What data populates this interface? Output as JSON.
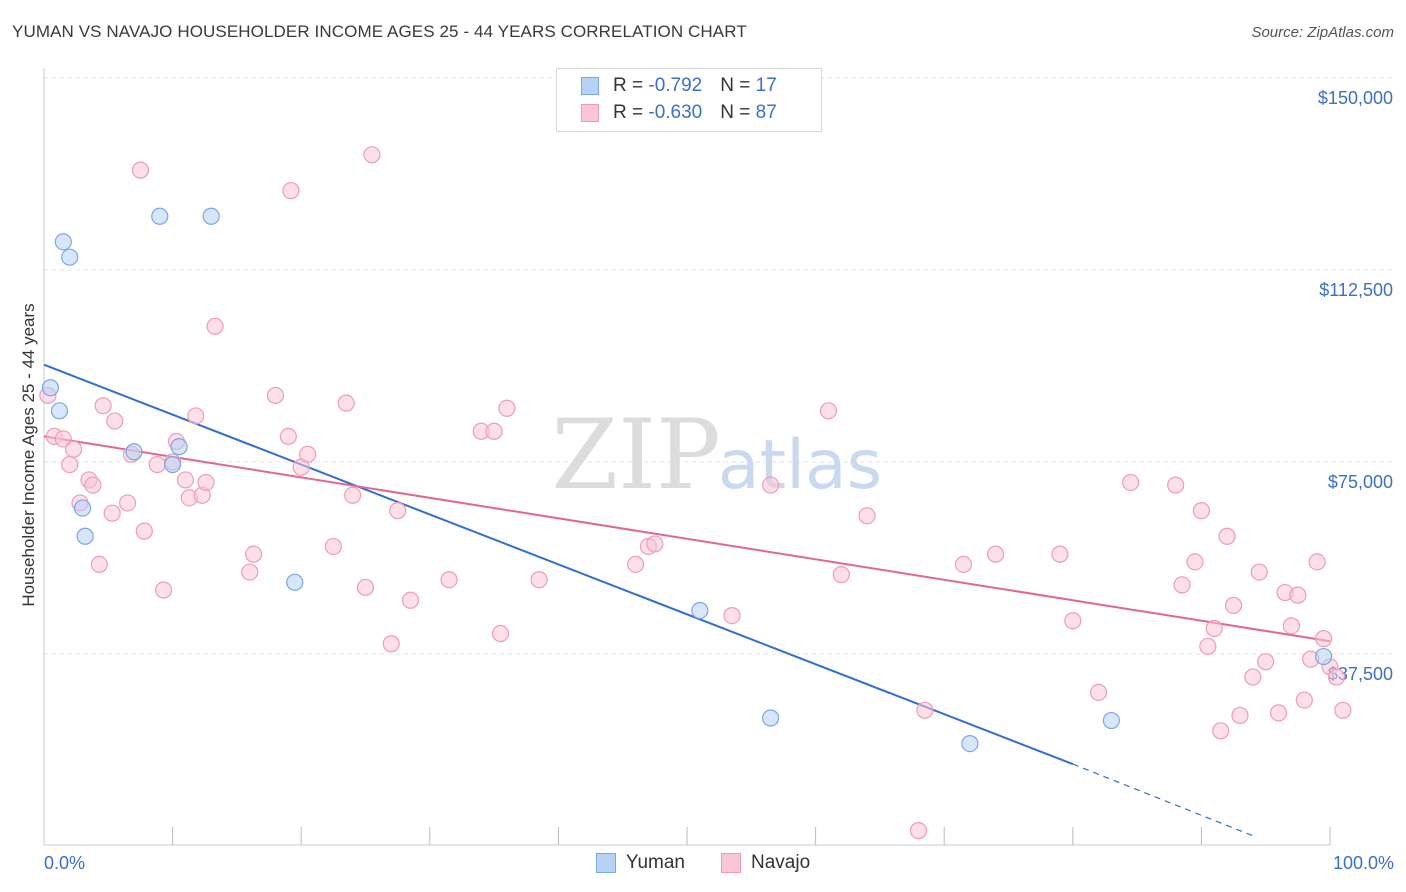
{
  "chart_data": {
    "type": "scatter",
    "title": "YUMAN VS NAVAJO HOUSEHOLDER INCOME AGES 25 - 44 YEARS CORRELATION CHART",
    "source": "Source: ZipAtlas.com",
    "xlabel": "",
    "ylabel": "Householder Income Ages 25 - 44 years",
    "xlim": [
      0,
      100
    ],
    "ylim": [
      0,
      157000
    ],
    "x_tick_labels": {
      "min": "0.0%",
      "max": "100.0%"
    },
    "y_ticks": [
      {
        "value": 37500,
        "label": "$37,500"
      },
      {
        "value": 75000,
        "label": "$75,000"
      },
      {
        "value": 112500,
        "label": "$112,500"
      },
      {
        "value": 150000,
        "label": "$150,000"
      }
    ],
    "grid": true,
    "watermark": {
      "zip": "ZIP",
      "atlas": "atlas"
    },
    "series": [
      {
        "name": "Yuman",
        "color": "#7aa7e8",
        "fill": "#b8d2f5",
        "line_color": "#2f6fcf",
        "R": "-0.792",
        "N": "17",
        "trend": {
          "x0": 0,
          "y0": 94000,
          "x1": 80,
          "y1": 16000,
          "dash_to_x": 94,
          "dash_to_y": 2000
        },
        "points": [
          [
            0.5,
            89500
          ],
          [
            1.5,
            118000
          ],
          [
            2.0,
            115000
          ],
          [
            1.2,
            85000
          ],
          [
            3.0,
            66000
          ],
          [
            3.2,
            60500
          ],
          [
            9.0,
            123000
          ],
          [
            13.0,
            123000
          ],
          [
            7.0,
            77000
          ],
          [
            10.0,
            74500
          ],
          [
            10.5,
            78000
          ],
          [
            19.5,
            51500
          ],
          [
            51.0,
            46000
          ],
          [
            56.5,
            25000
          ],
          [
            72.0,
            20000
          ],
          [
            83.0,
            24500
          ],
          [
            99.5,
            37000
          ]
        ]
      },
      {
        "name": "Navajo",
        "color": "#f19bb7",
        "fill": "#f8c6d6",
        "line_color": "#e2678f",
        "R": "-0.630",
        "N": "87",
        "trend": {
          "x0": 0,
          "y0": 80000,
          "x1": 100,
          "y1": 40000
        },
        "points": [
          [
            0.3,
            88000
          ],
          [
            0.8,
            80000
          ],
          [
            1.5,
            79500
          ],
          [
            2.0,
            74500
          ],
          [
            2.3,
            77500
          ],
          [
            2.8,
            67000
          ],
          [
            3.5,
            71500
          ],
          [
            3.8,
            70500
          ],
          [
            4.3,
            55000
          ],
          [
            4.6,
            86000
          ],
          [
            5.5,
            83000
          ],
          [
            5.3,
            65000
          ],
          [
            6.5,
            67000
          ],
          [
            6.8,
            76500
          ],
          [
            7.8,
            61500
          ],
          [
            8.8,
            74500
          ],
          [
            9.3,
            50000
          ],
          [
            7.5,
            132000
          ],
          [
            10.0,
            75000
          ],
          [
            10.3,
            79000
          ],
          [
            11.0,
            71500
          ],
          [
            11.3,
            68000
          ],
          [
            11.8,
            84000
          ],
          [
            12.3,
            68500
          ],
          [
            12.6,
            71000
          ],
          [
            13.3,
            101500
          ],
          [
            16.0,
            53500
          ],
          [
            16.3,
            57000
          ],
          [
            18.0,
            88000
          ],
          [
            19.0,
            80000
          ],
          [
            20.0,
            74000
          ],
          [
            20.5,
            76500
          ],
          [
            19.2,
            128000
          ],
          [
            22.5,
            58500
          ],
          [
            23.5,
            86500
          ],
          [
            24.0,
            68500
          ],
          [
            25.0,
            50500
          ],
          [
            25.5,
            135000
          ],
          [
            27.0,
            39500
          ],
          [
            27.5,
            65500
          ],
          [
            28.5,
            48000
          ],
          [
            31.5,
            52000
          ],
          [
            34.0,
            81000
          ],
          [
            35.0,
            81000
          ],
          [
            36.0,
            85500
          ],
          [
            35.5,
            41500
          ],
          [
            38.5,
            52000
          ],
          [
            46.0,
            55000
          ],
          [
            47.0,
            58500
          ],
          [
            47.5,
            59000
          ],
          [
            53.5,
            45000
          ],
          [
            56.5,
            70500
          ],
          [
            61.0,
            85000
          ],
          [
            62.0,
            53000
          ],
          [
            64.0,
            64500
          ],
          [
            68.5,
            26500
          ],
          [
            68.0,
            3000
          ],
          [
            71.5,
            55000
          ],
          [
            74.0,
            57000
          ],
          [
            79.0,
            57000
          ],
          [
            80.0,
            44000
          ],
          [
            82.0,
            30000
          ],
          [
            84.5,
            71000
          ],
          [
            88.0,
            70500
          ],
          [
            88.5,
            51000
          ],
          [
            89.5,
            55500
          ],
          [
            90.0,
            65500
          ],
          [
            90.5,
            39000
          ],
          [
            91.0,
            42500
          ],
          [
            91.5,
            22500
          ],
          [
            92.0,
            60500
          ],
          [
            92.5,
            47000
          ],
          [
            93.0,
            25500
          ],
          [
            94.0,
            33000
          ],
          [
            94.5,
            53500
          ],
          [
            95.0,
            36000
          ],
          [
            96.0,
            26000
          ],
          [
            96.5,
            49500
          ],
          [
            97.0,
            43000
          ],
          [
            97.5,
            49000
          ],
          [
            98.0,
            28500
          ],
          [
            98.5,
            36500
          ],
          [
            99.0,
            55500
          ],
          [
            99.5,
            40500
          ],
          [
            100.0,
            35000
          ],
          [
            100.5,
            33000
          ],
          [
            101.0,
            26500
          ]
        ]
      }
    ]
  }
}
